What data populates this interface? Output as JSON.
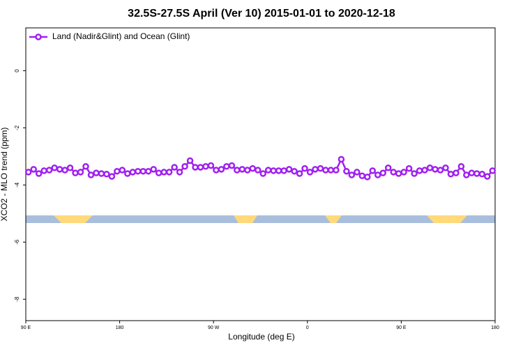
{
  "chart_data": {
    "type": "line",
    "title": "32.5S-27.5S April (Ver 10)   2015-01-01 to 2020-12-18",
    "xlabel": "Longitude (deg E)",
    "ylabel": "XCO2 - MLO trend (ppm)",
    "x": [
      92.5,
      97.5,
      102.5,
      107.5,
      112.5,
      117.5,
      122.5,
      127.5,
      132.5,
      137.5,
      142.5,
      147.5,
      152.5,
      157.5,
      162.5,
      167.5,
      172.5,
      177.5,
      182.5,
      187.5,
      192.5,
      197.5,
      202.5,
      207.5,
      212.5,
      217.5,
      222.5,
      227.5,
      232.5,
      237.5,
      242.5,
      247.5,
      252.5,
      257.5,
      262.5,
      267.5,
      272.5,
      277.5,
      282.5,
      287.5,
      292.5,
      297.5,
      302.5,
      307.5,
      312.5,
      317.5,
      322.5,
      327.5,
      332.5,
      337.5,
      342.5,
      347.5,
      352.5,
      357.5,
      362.5,
      367.5,
      372.5,
      377.5,
      382.5,
      387.5,
      392.5,
      397.5,
      402.5,
      407.5,
      412.5,
      417.5,
      422.5,
      427.5,
      432.5,
      437.5,
      442.5,
      447.5,
      452.5,
      457.5,
      462.5,
      467.5,
      472.5,
      477.5,
      482.5,
      487.5,
      492.5,
      497.5,
      502.5,
      507.5,
      512.5,
      517.5,
      522.5,
      527.5,
      532.5,
      537.5
    ],
    "series": [
      {
        "name": "Land (Nadir&Glint) and Ocean (Glint)",
        "color": "#a020f0",
        "values": [
          -3.55,
          -3.45,
          -3.6,
          -3.5,
          -3.48,
          -3.4,
          -3.45,
          -3.48,
          -3.4,
          -3.58,
          -3.55,
          -3.35,
          -3.65,
          -3.58,
          -3.6,
          -3.62,
          -3.7,
          -3.52,
          -3.48,
          -3.6,
          -3.55,
          -3.52,
          -3.52,
          -3.52,
          -3.45,
          -3.58,
          -3.55,
          -3.55,
          -3.38,
          -3.55,
          -3.35,
          -3.15,
          -3.38,
          -3.38,
          -3.35,
          -3.32,
          -3.48,
          -3.45,
          -3.35,
          -3.32,
          -3.48,
          -3.45,
          -3.48,
          -3.42,
          -3.48,
          -3.6,
          -3.48,
          -3.5,
          -3.5,
          -3.5,
          -3.45,
          -3.52,
          -3.6,
          -3.42,
          -3.55,
          -3.45,
          -3.42,
          -3.48,
          -3.48,
          -3.48,
          -3.1,
          -3.52,
          -3.65,
          -3.55,
          -3.68,
          -3.72,
          -3.5,
          -3.65,
          -3.58,
          -3.4,
          -3.55,
          -3.6,
          -3.55,
          -3.42,
          -3.6,
          -3.5,
          -3.48,
          -3.4,
          -3.45,
          -3.48,
          -3.4,
          -3.62,
          -3.58,
          -3.35,
          -3.65,
          -3.58,
          -3.6,
          -3.62,
          -3.7,
          -3.5
        ]
      }
    ],
    "xlim": [
      90,
      540
    ],
    "xticks": [
      {
        "value": 90,
        "label": "90 E"
      },
      180,
      {
        "value": 270,
        "label": "90 W"
      },
      {
        "value": 360,
        "label": "0"
      },
      {
        "value": 450,
        "label": "90 E"
      },
      {
        "value": 540,
        "label": "180"
      }
    ],
    "ylim": [
      -8.75,
      1.5
    ],
    "yticks": [
      0,
      -2,
      -4,
      -6,
      -8
    ],
    "legend": "top-left"
  }
}
